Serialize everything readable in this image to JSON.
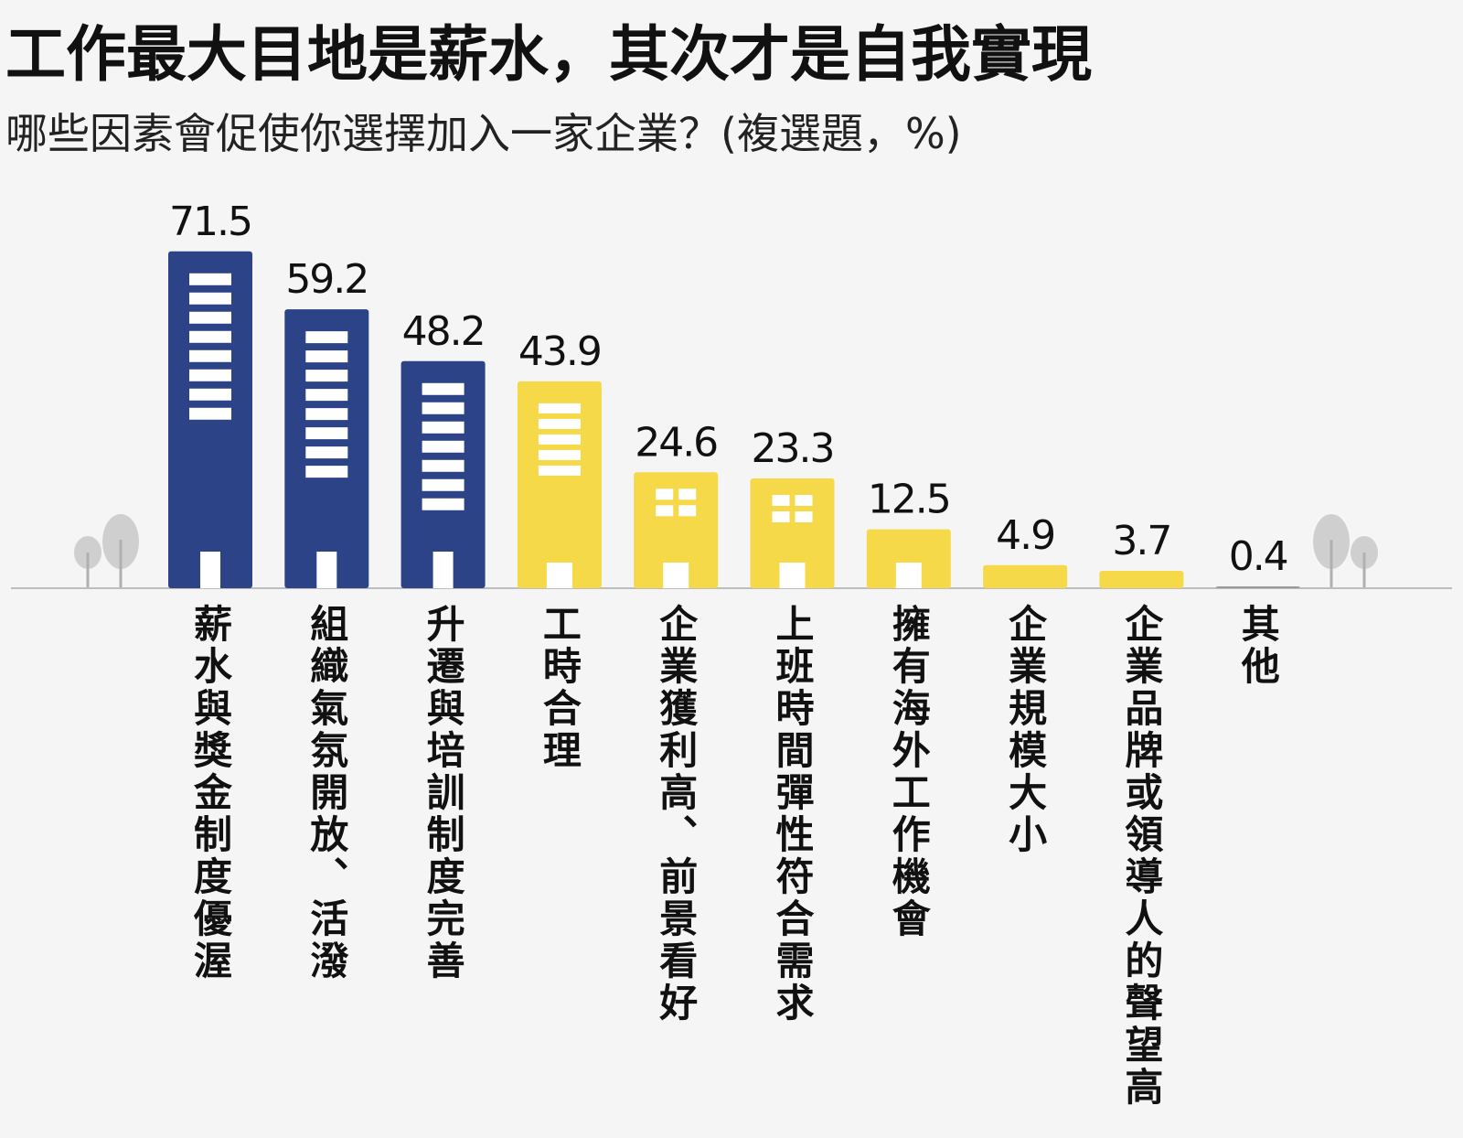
{
  "chart_data": {
    "type": "bar",
    "title": "工作最大目地是薪水，其次才是自我實現",
    "subtitle": "哪些因素會促使你選擇加入一家企業？(複選題，%)",
    "categories": [
      "薪水與獎金制度優渥",
      "組織氣氛開放、活潑",
      "升遷與培訓制度完善",
      "工時合理",
      "企業獲利高、前景看好",
      "上班時間彈性符合需求",
      "擁有海外工作機會",
      "企業規模大小",
      "企業品牌或領導人的聲望高",
      "其他"
    ],
    "values": [
      71.5,
      59.2,
      48.2,
      43.9,
      24.6,
      23.3,
      12.5,
      4.9,
      3.7,
      0.4
    ],
    "colors": [
      "#2c4388",
      "#2c4388",
      "#2c4388",
      "#f5d949",
      "#f5d949",
      "#f5d949",
      "#f5d949",
      "#f5d949",
      "#f5d949",
      "#9a9a9a"
    ],
    "ylim": [
      0,
      80
    ]
  }
}
